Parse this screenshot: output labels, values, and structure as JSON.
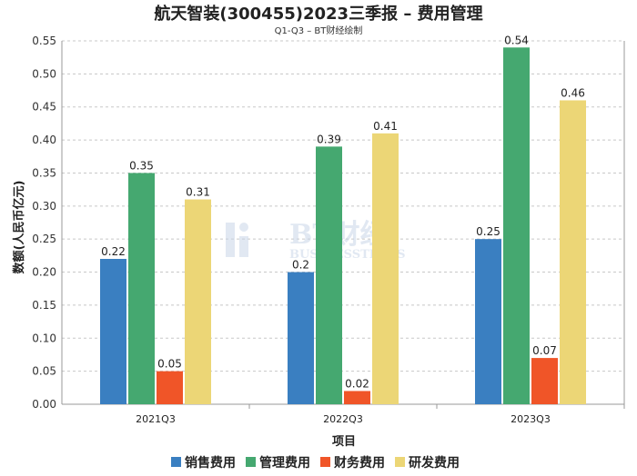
{
  "chart_data": {
    "type": "bar",
    "title": "航天智装(300455)2023三季报 – 费用管理",
    "subtitle": "Q1-Q3 – BT财经绘制",
    "xlabel": "项目",
    "ylabel": "数额(人民币亿元)",
    "categories": [
      "2021Q3",
      "2022Q3",
      "2023Q3"
    ],
    "ylim": [
      0,
      0.55
    ],
    "yticks": [
      0.0,
      0.05,
      0.1,
      0.15,
      0.2,
      0.25,
      0.3,
      0.35,
      0.4,
      0.45,
      0.5,
      0.55
    ],
    "grid": true,
    "legend_position": "bottom",
    "series": [
      {
        "name": "销售费用",
        "color": "#3a7fc1",
        "values": [
          0.22,
          0.2,
          0.25
        ],
        "labels": [
          "0.22",
          "0.2",
          "0.25"
        ]
      },
      {
        "name": "管理费用",
        "color": "#45a870",
        "values": [
          0.35,
          0.39,
          0.54
        ],
        "labels": [
          "0.35",
          "0.39",
          "0.54"
        ]
      },
      {
        "name": "财务费用",
        "color": "#f05528",
        "values": [
          0.05,
          0.02,
          0.07
        ],
        "labels": [
          "0.05",
          "0.02",
          "0.07"
        ]
      },
      {
        "name": "研发费用",
        "color": "#ecd676",
        "values": [
          0.31,
          0.41,
          0.46
        ],
        "labels": [
          "0.31",
          "0.41",
          "0.46"
        ]
      }
    ]
  },
  "watermark": {
    "big": "BT财经",
    "small": "BUSINESSTIMES"
  }
}
